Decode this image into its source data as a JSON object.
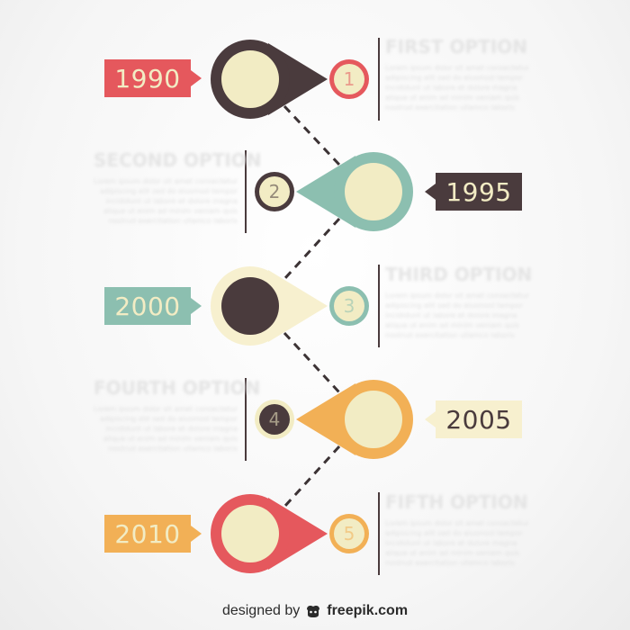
{
  "colors": {
    "red": "#e5585d",
    "brown": "#4a3b3d",
    "teal": "#8cbfb0",
    "cream": "#f2ecc4",
    "orange": "#f2b056",
    "light_cream": "#f7f0cf"
  },
  "milestones": [
    {
      "year": "1990",
      "number": "1",
      "title": "FIRST OPTION",
      "side": "right",
      "lines": [
        "Lorem ipsum dolor sit amet consectetur",
        "adipiscing elit sed do eiusmod tempor",
        "incididunt ut labore et dolore magna",
        "aliqua ut enim ad minim veniam quis",
        "nostrud exercitation ullamco laboris"
      ]
    },
    {
      "year": "1995",
      "number": "2",
      "title": "SECOND OPTION",
      "side": "left",
      "lines": [
        "Lorem ipsum dolor sit amet consectetur",
        "adipiscing elit sed do eiusmod tempor",
        "incididunt ut labore et dolore magna",
        "aliqua ut enim ad minim veniam quis",
        "nostrud exercitation ullamco laboris"
      ]
    },
    {
      "year": "2000",
      "number": "3",
      "title": "THIRD OPTION",
      "side": "right",
      "lines": [
        "Lorem ipsum dolor sit amet consectetur",
        "adipiscing elit sed do eiusmod tempor",
        "incididunt ut labore et dolore magna",
        "aliqua ut enim ad minim veniam quis",
        "nostrud exercitation ullamco laboris"
      ]
    },
    {
      "year": "2005",
      "number": "4",
      "title": "FOURTH OPTION",
      "side": "left",
      "lines": [
        "Lorem ipsum dolor sit amet consectetur",
        "adipiscing elit sed do eiusmod tempor",
        "incididunt ut labore et dolore magna",
        "aliqua ut enim ad minim veniam quis",
        "nostrud exercitation ullamco laboris"
      ]
    },
    {
      "year": "2010",
      "number": "5",
      "title": "FIFTH OPTION",
      "side": "right",
      "lines": [
        "Lorem ipsum dolor sit amet consectetur",
        "adipiscing elit sed do eiusmod tempor",
        "incididunt ut labore et dolore magna",
        "aliqua ut enim ad minim veniam quis",
        "nostrud exercitation ullamco laboris"
      ]
    }
  ],
  "footer": {
    "prefix": "designed by",
    "icon": "freepik-logo-icon",
    "brand": "freepik.com"
  }
}
